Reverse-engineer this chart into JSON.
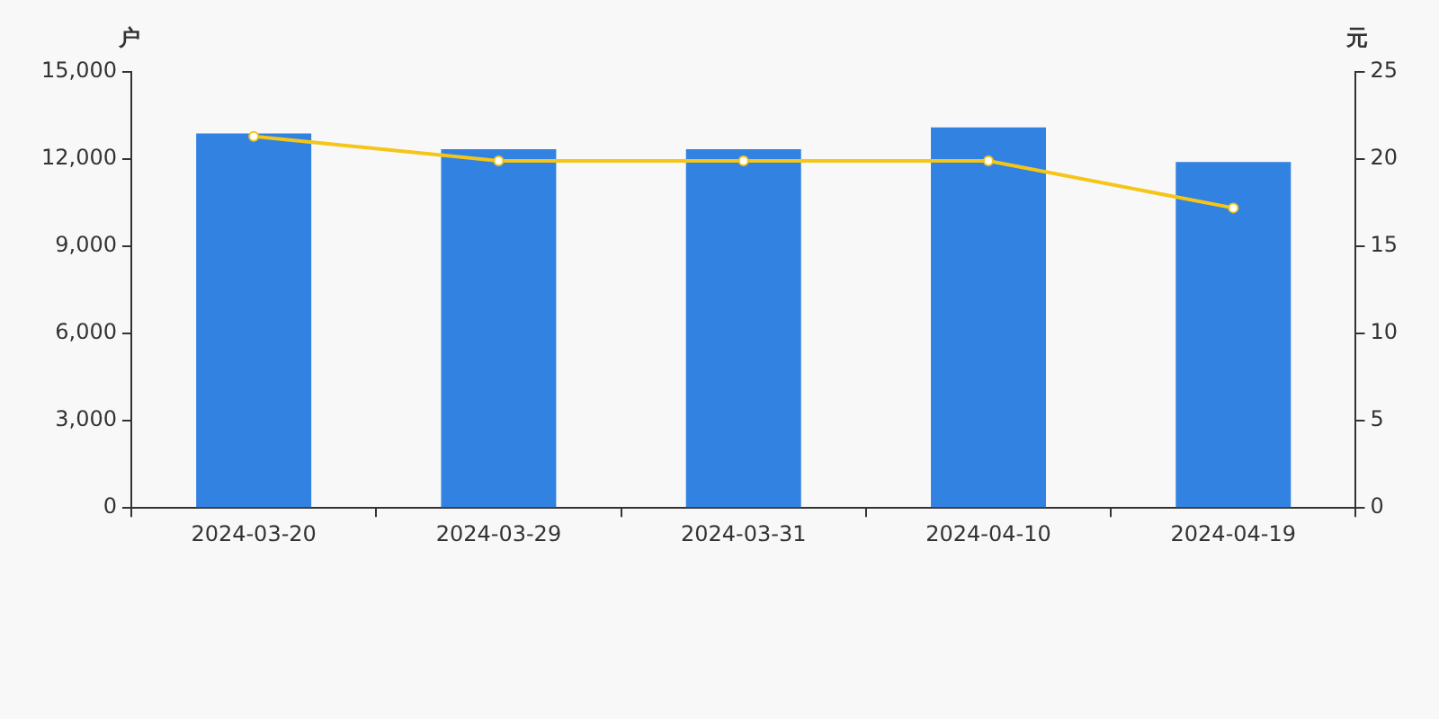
{
  "chart_data": {
    "type": "bar",
    "ylabel": "户",
    "y2label": "元",
    "categories": [
      "2024-03-20",
      "2024-03-29",
      "2024-03-31",
      "2024-04-10",
      "2024-04-19"
    ],
    "series": [
      {
        "color": "#3282e2",
        "values": [
          12880,
          12340,
          12340,
          13090,
          11900
        ]
      },
      {
        "type": "line",
        "axis": "y2",
        "color": "#f5c518",
        "marker": "circle",
        "values": [
          21.3,
          19.9,
          19.9,
          19.9,
          17.2
        ]
      }
    ],
    "ylim": [
      0,
      15000
    ],
    "yticks": [
      {
        "value": 0,
        "label": "0"
      },
      {
        "value": 3000,
        "label": "3,000"
      },
      {
        "value": 6000,
        "label": "6,000"
      },
      {
        "value": 9000,
        "label": "9,000"
      },
      {
        "value": 12000,
        "label": "12,000"
      },
      {
        "value": 15000,
        "label": "15,000"
      }
    ],
    "y2lim": [
      0,
      25
    ],
    "y2ticks": [
      0,
      5,
      10,
      15,
      20,
      25
    ],
    "grid": false,
    "legend": false
  }
}
